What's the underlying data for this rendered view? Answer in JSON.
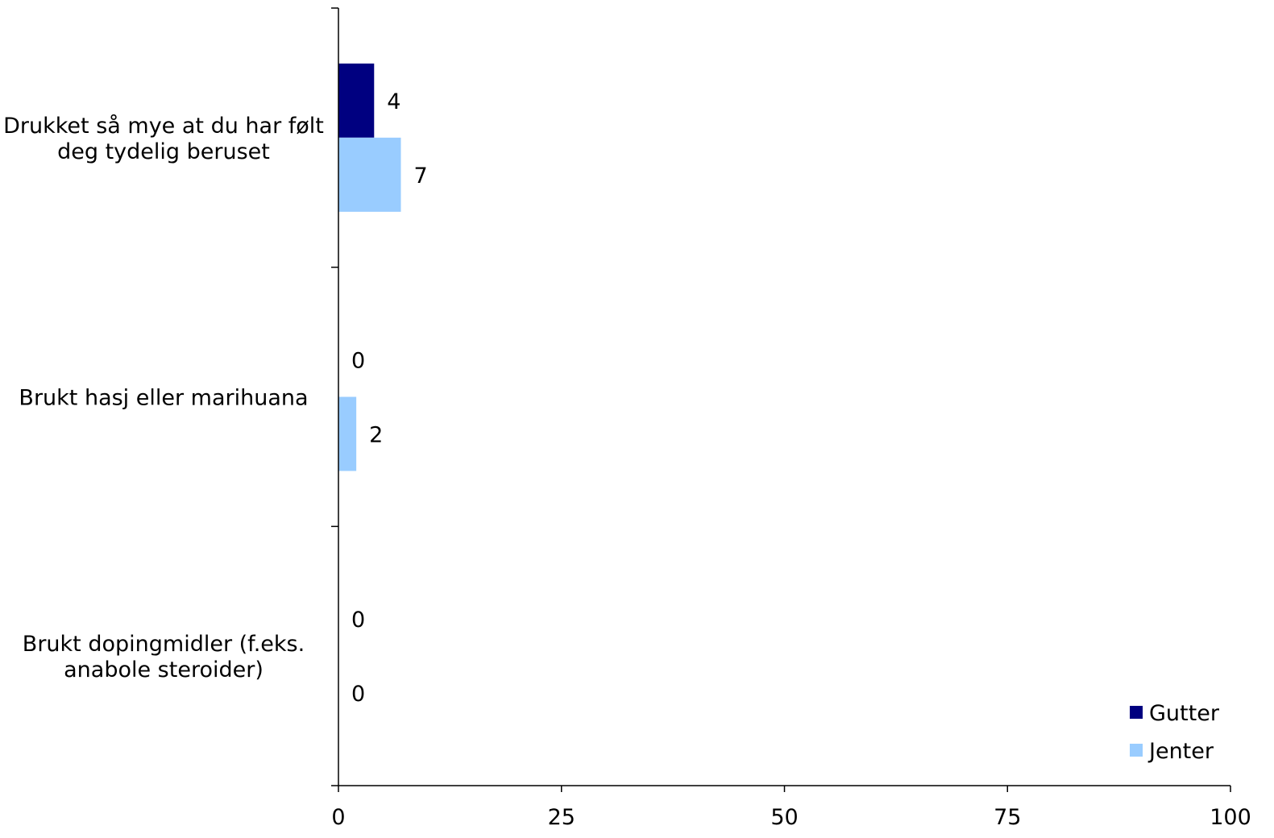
{
  "chart_data": {
    "type": "bar",
    "orientation": "horizontal",
    "categories": [
      [
        "Drukket så mye at du har følt",
        "deg tydelig beruset"
      ],
      [
        "Brukt hasj eller marihuana"
      ],
      [
        "Brukt dopingmidler (f.eks.",
        "anabole steroider)"
      ]
    ],
    "series": [
      {
        "name": "Gutter",
        "color": "#000080",
        "values": [
          4,
          0,
          0
        ],
        "labels": [
          "4",
          "0",
          "0"
        ]
      },
      {
        "name": "Jenter",
        "color": "#99CCFF",
        "values": [
          7,
          2,
          0
        ],
        "labels": [
          "7",
          "2",
          "0"
        ]
      }
    ],
    "xlim": [
      0,
      100
    ],
    "xticks": [
      "0",
      "25",
      "50",
      "75",
      "100"
    ],
    "xtick_values": [
      0,
      25,
      50,
      75,
      100
    ],
    "grid": false,
    "legend_position": "bottom-right"
  }
}
